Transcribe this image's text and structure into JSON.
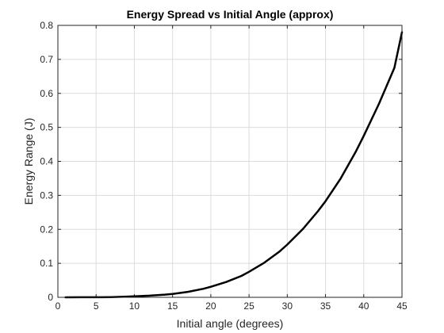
{
  "chart_data": {
    "type": "line",
    "title": "Energy Spread vs Initial Angle (approx)",
    "xlabel": "Initial angle (degrees)",
    "ylabel": "Energy Range (J)",
    "xlim": [
      0,
      45
    ],
    "ylim": [
      0,
      0.8
    ],
    "xticks": [
      0,
      5,
      10,
      15,
      20,
      25,
      30,
      35,
      40,
      45
    ],
    "yticks": [
      0,
      0.1,
      0.2,
      0.3,
      0.4,
      0.5,
      0.6,
      0.7,
      0.8
    ],
    "xtick_labels": [
      "0",
      "5",
      "10",
      "15",
      "20",
      "25",
      "30",
      "35",
      "40",
      "45"
    ],
    "ytick_labels": [
      "0",
      "0.1",
      "0.2",
      "0.3",
      "0.4",
      "0.5",
      "0.6",
      "0.7",
      "0.8"
    ],
    "grid": true,
    "series": [
      {
        "color": "#000000",
        "x": [
          1,
          3,
          5,
          7,
          9,
          10,
          12,
          14,
          15,
          17,
          19,
          20,
          22,
          24,
          25,
          27,
          29,
          30,
          32,
          34,
          35,
          37,
          39,
          40,
          42,
          44,
          45
        ],
        "y": [
          0.0,
          0.0002,
          0.0003,
          0.0008,
          0.002,
          0.003,
          0.005,
          0.008,
          0.01,
          0.016,
          0.025,
          0.031,
          0.045,
          0.063,
          0.075,
          0.102,
          0.135,
          0.155,
          0.2,
          0.253,
          0.283,
          0.35,
          0.43,
          0.475,
          0.57,
          0.675,
          0.78
        ]
      }
    ]
  }
}
